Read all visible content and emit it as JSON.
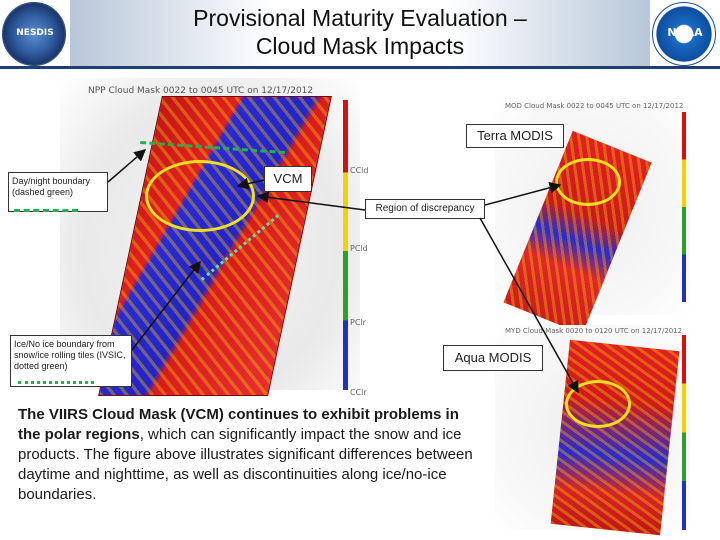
{
  "header": {
    "title_line1": "Provisional Maturity Evaluation –",
    "title_line2": "Cloud Mask Impacts",
    "left_logo_text": "NESDIS",
    "right_logo_text": "NOAA"
  },
  "main_image": {
    "caption": "NPP Cloud Mask  0022 to 0045 UTC on  12/17/2012",
    "colorbar_labels": [
      "CCld",
      "PCld",
      "PClr",
      "CClr"
    ]
  },
  "terra_image": {
    "caption": "MOD Cloud Mask 0022 to 0045 UTC on 12/17/2012"
  },
  "aqua_image": {
    "caption": "MYD Cloud Mask 0020 to 0120 UTC on 12/17/2012"
  },
  "callouts": {
    "terra_label": "Terra MODIS",
    "vcm_label": "VCM",
    "region_label": "Region of discrepancy",
    "aqua_label": "Aqua MODIS",
    "daynight_label": "Day/night boundary (dashed green)",
    "ice_label": "Ice/No ice boundary from snow/ice rolling tiles (IVSIC, dotted green)"
  },
  "body": {
    "bold_part": "The VIIRS Cloud Mask (VCM) continues to exhibit problems in the polar regions",
    "rest": ", which can significantly impact the snow and ice products. The figure above illustrates significant differences between daytime and nighttime, as well as discontinuities along ice/no-ice boundaries."
  },
  "colors": {
    "header_rule": "#1f3f73",
    "highlight": "#f0e020",
    "boundary_green": "#22b14c",
    "dotted_green": "#66ddaa"
  }
}
